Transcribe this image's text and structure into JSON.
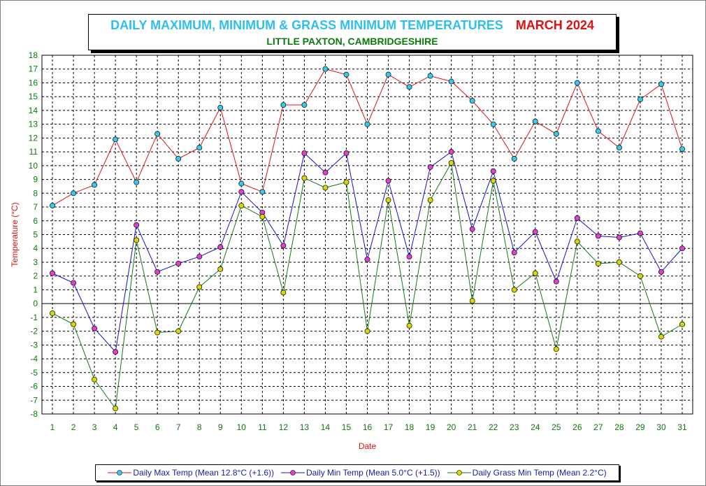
{
  "title": {
    "main": "DAILY MAXIMUM, MINIMUM & GRASS MINIMUM TEMPERATURES",
    "month": "MARCH 2024",
    "subtitle": "LITTLE PAXTON, CAMBRIDGESHIRE"
  },
  "colors": {
    "title_main": "#2ebff0",
    "title_month": "#e01010",
    "subtitle": "#0a7a0a",
    "tick_labels": "#0a7a0a",
    "axis_titles": "#e01010",
    "grid": "#000000",
    "legend_text": "#1a1ab0"
  },
  "chart_data": {
    "type": "line",
    "x": [
      1,
      2,
      3,
      4,
      5,
      6,
      7,
      8,
      9,
      10,
      11,
      12,
      13,
      14,
      15,
      16,
      17,
      18,
      19,
      20,
      21,
      22,
      23,
      24,
      25,
      26,
      27,
      28,
      29,
      30,
      31
    ],
    "xlabel": "Date",
    "ylabel": "Temperature (°C)",
    "ylim": [
      -8,
      18
    ],
    "yticks": [
      18,
      17,
      16,
      15,
      14,
      13,
      12,
      11,
      10,
      9,
      8,
      7,
      6,
      5,
      4,
      3,
      2,
      1,
      0,
      -1,
      -2,
      -3,
      -4,
      -5,
      -6,
      -7,
      -8
    ],
    "grid": true,
    "legend_position": "bottom",
    "series": [
      {
        "name": "Daily Max Temp (Mean 12.8°C (+1.6))",
        "line_color": "#e01010",
        "marker_color": "#33ccee",
        "values": [
          7.1,
          8.0,
          8.6,
          11.9,
          8.8,
          12.3,
          10.5,
          11.3,
          14.2,
          8.7,
          8.1,
          14.4,
          14.4,
          17.0,
          16.6,
          13.0,
          16.6,
          15.7,
          16.5,
          16.1,
          14.7,
          13.0,
          10.5,
          13.2,
          12.3,
          16.0,
          12.5,
          11.3,
          14.8,
          15.9,
          11.2
        ]
      },
      {
        "name": "Daily Min Temp (Mean 5.0°C (+1.5))",
        "line_color": "#1010d0",
        "marker_color": "#e040d0",
        "values": [
          2.2,
          1.5,
          -1.8,
          -3.5,
          5.7,
          2.3,
          2.9,
          3.4,
          4.1,
          8.1,
          6.6,
          4.2,
          10.9,
          9.5,
          10.9,
          3.2,
          8.9,
          3.4,
          9.9,
          11.0,
          5.4,
          9.6,
          3.7,
          5.2,
          1.6,
          6.2,
          4.9,
          4.8,
          5.1,
          2.3,
          4.0
        ]
      },
      {
        "name": "Daily Grass Min Temp (Mean 2.2°C)",
        "line_color": "#107a10",
        "marker_color": "#d8d800",
        "values": [
          -0.7,
          -1.5,
          -5.5,
          -7.6,
          4.6,
          -2.1,
          -2.0,
          1.2,
          2.5,
          7.1,
          6.3,
          0.8,
          9.1,
          8.4,
          8.8,
          -2.0,
          7.5,
          -1.6,
          7.5,
          10.2,
          0.2,
          8.9,
          1.0,
          2.2,
          -3.3,
          4.5,
          2.9,
          3.0,
          2.0,
          -2.4,
          -1.5
        ]
      }
    ]
  }
}
